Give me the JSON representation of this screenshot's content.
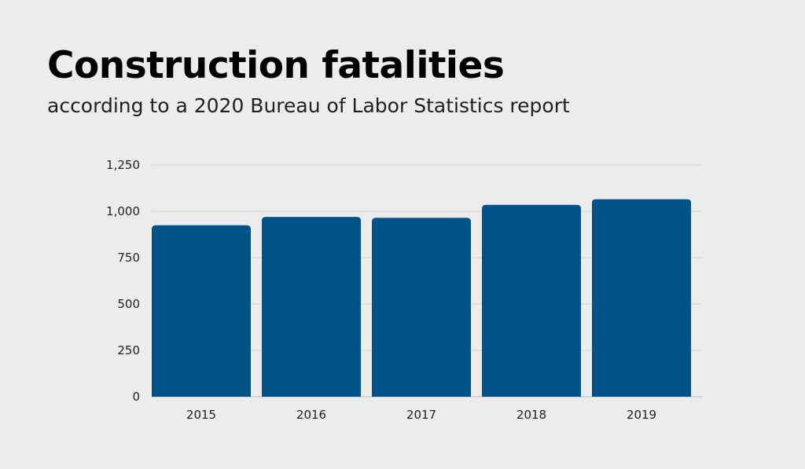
{
  "chart_data": {
    "type": "bar",
    "title": "Construction fatalities",
    "subtitle": "according to a 2020 Bureau of Labor Statistics report",
    "categories": [
      "2015",
      "2016",
      "2017",
      "2018",
      "2019"
    ],
    "values": [
      925,
      970,
      965,
      1035,
      1065
    ],
    "ylim": [
      0,
      1250
    ],
    "yticks": [
      0,
      250,
      500,
      750,
      1000,
      1250
    ],
    "ytick_labels": [
      "0",
      "250",
      "500",
      "750",
      "1,000",
      "1,250"
    ],
    "xlabel": "",
    "ylabel": "",
    "grid": true,
    "legend": "none",
    "bar_color": "#02528a",
    "grid_color": "#d3d3d3"
  }
}
